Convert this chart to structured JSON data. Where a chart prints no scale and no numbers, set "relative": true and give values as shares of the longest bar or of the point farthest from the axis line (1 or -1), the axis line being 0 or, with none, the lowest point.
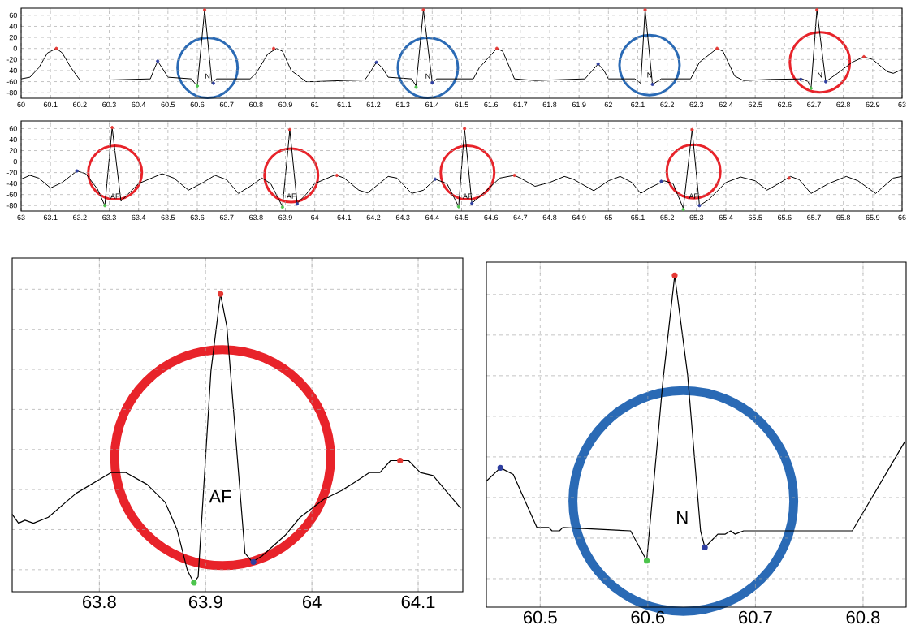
{
  "chart_data": [
    {
      "type": "line",
      "xlim": [
        60,
        63
      ],
      "ylim": [
        -90,
        73
      ],
      "xticks": [
        60,
        60.1,
        60.2,
        60.3,
        60.4,
        60.5,
        60.6,
        60.7,
        60.8,
        60.9,
        61,
        61.1,
        61.2,
        61.3,
        61.4,
        61.5,
        61.6,
        61.7,
        61.8,
        61.9,
        62,
        62.1,
        62.2,
        62.3,
        62.4,
        62.5,
        62.6,
        62.7,
        62.8,
        62.9,
        63
      ],
      "yticks": [
        -80,
        -60,
        -40,
        -20,
        0,
        20,
        40,
        60
      ],
      "grid": true,
      "series": [
        {
          "marker": "none",
          "color": "#000000",
          "x": [
            60.0,
            60.03,
            60.06,
            60.09,
            60.12,
            60.14,
            60.17,
            60.2,
            60.3,
            60.44,
            60.455,
            60.465,
            60.48,
            60.5,
            60.58,
            60.595,
            60.6,
            60.625,
            60.65,
            60.665,
            60.78,
            60.8,
            60.84,
            60.87,
            60.89,
            60.92,
            60.97,
            61.0,
            61.1,
            61.17,
            61.18,
            61.21,
            61.23,
            61.25,
            61.33,
            61.345,
            61.37,
            61.4,
            61.415,
            61.54,
            61.56,
            61.62,
            61.64,
            61.68,
            61.75,
            61.92,
            61.945,
            61.965,
            61.985,
            62.0,
            62.09,
            62.11,
            62.125,
            62.15,
            62.18,
            62.28,
            62.31,
            62.37,
            62.39,
            62.43,
            62.46,
            62.55,
            62.66,
            62.68,
            62.69,
            62.71,
            62.74,
            62.78,
            62.83,
            62.87,
            62.9,
            62.95,
            62.97,
            63.0
          ],
          "values": [
            -55,
            -52,
            -35,
            -8,
            0,
            -8,
            -35,
            -57,
            -57,
            -55,
            -35,
            -23,
            -35,
            -52,
            -55,
            -65,
            -68,
            70,
            -63,
            -55,
            -55,
            -45,
            -10,
            0,
            -5,
            -40,
            -60,
            -60,
            -58,
            -57,
            -50,
            -25,
            -35,
            -52,
            -55,
            -68,
            70,
            -62,
            -55,
            -55,
            -35,
            0,
            -5,
            -55,
            -58,
            -55,
            -40,
            -28,
            -40,
            -55,
            -55,
            -63,
            70,
            -65,
            -55,
            -55,
            -25,
            0,
            -5,
            -50,
            -58,
            -56,
            -55,
            -60,
            -72,
            70,
            -60,
            -45,
            -25,
            -15,
            -20,
            -42,
            -45,
            -38
          ]
        },
        {
          "type": "scatter",
          "marker": "circle",
          "color": "#e53935",
          "x": [
            60.12,
            60.625,
            60.86,
            61.37,
            61.62,
            62.125,
            62.37,
            62.71,
            62.87
          ],
          "values": [
            0,
            70,
            0,
            70,
            0,
            70,
            0,
            70,
            -15
          ]
        },
        {
          "type": "scatter",
          "marker": "circle",
          "color": "#2f3fa0",
          "x": [
            60.465,
            60.655,
            61.21,
            61.4,
            61.965,
            62.15,
            62.655,
            62.74
          ],
          "values": [
            -23,
            -63,
            -25,
            -62,
            -28,
            -65,
            -56,
            -60
          ]
        },
        {
          "type": "scatter",
          "marker": "circle",
          "color": "#4cc44c",
          "x": [
            60.6,
            61.345,
            62.69
          ],
          "values": [
            -68,
            -70,
            -72
          ]
        }
      ],
      "annotations": [
        "N",
        "N",
        "N",
        "N"
      ]
    },
    {
      "type": "line",
      "xlim": [
        63,
        66
      ],
      "ylim": [
        -90,
        74
      ],
      "xticks": [
        63,
        63.1,
        63.2,
        63.3,
        63.4,
        63.5,
        63.6,
        63.7,
        63.8,
        63.9,
        64,
        64.1,
        64.2,
        64.3,
        64.4,
        64.5,
        64.6,
        64.7,
        64.8,
        64.9,
        65,
        65.1,
        65.2,
        65.3,
        65.4,
        65.5,
        65.6,
        65.7,
        65.8,
        65.9,
        66
      ],
      "yticks": [
        -80,
        -60,
        -40,
        -20,
        0,
        20,
        40,
        60
      ],
      "grid": true,
      "series": [
        {
          "marker": "none",
          "color": "#000000",
          "x": [
            63.0,
            63.03,
            63.06,
            63.1,
            63.14,
            63.19,
            63.22,
            63.26,
            63.285,
            63.31,
            63.34,
            63.4,
            63.48,
            63.52,
            63.57,
            63.62,
            63.66,
            63.7,
            63.74,
            63.78,
            63.82,
            63.85,
            63.89,
            63.915,
            63.94,
            63.97,
            64.0,
            64.07,
            64.1,
            64.15,
            64.18,
            64.25,
            64.28,
            64.33,
            64.37,
            64.41,
            64.45,
            64.49,
            64.51,
            64.535,
            64.58,
            64.63,
            64.68,
            64.7,
            64.75,
            64.8,
            64.85,
            64.88,
            64.95,
            65.0,
            65.04,
            65.08,
            65.11,
            65.14,
            65.19,
            65.22,
            65.255,
            65.285,
            65.31,
            65.34,
            65.4,
            65.45,
            65.5,
            65.54,
            65.58,
            65.62,
            65.65,
            65.69,
            65.75,
            65.81,
            65.85,
            65.91,
            65.97,
            66.0
          ],
          "values": [
            -32,
            -25,
            -30,
            -48,
            -38,
            -17,
            -22,
            -50,
            -80,
            62,
            -72,
            -40,
            -22,
            -30,
            -52,
            -38,
            -25,
            -33,
            -58,
            -45,
            -30,
            -40,
            -82,
            58,
            -76,
            -60,
            -40,
            -24,
            -30,
            -52,
            -57,
            -27,
            -30,
            -58,
            -52,
            -32,
            -40,
            -82,
            60,
            -76,
            -55,
            -30,
            -25,
            -30,
            -45,
            -38,
            -27,
            -32,
            -53,
            -35,
            -27,
            -38,
            -58,
            -48,
            -35,
            -40,
            -85,
            58,
            -80,
            -70,
            -38,
            -28,
            -35,
            -52,
            -40,
            -27,
            -33,
            -58,
            -40,
            -27,
            -35,
            -58,
            -30,
            -27
          ]
        },
        {
          "type": "scatter",
          "marker": "circle",
          "color": "#e53935",
          "x": [
            63.31,
            63.915,
            64.075,
            64.51,
            64.68,
            65.285,
            65.615
          ],
          "values": [
            62,
            58,
            -25,
            60,
            -25,
            58,
            -30
          ]
        },
        {
          "type": "scatter",
          "marker": "circle",
          "color": "#2f3fa0",
          "x": [
            63.19,
            63.94,
            64.41,
            64.535,
            65.18,
            65.31
          ],
          "values": [
            -17,
            -77,
            -32,
            -76,
            -36,
            -80
          ]
        },
        {
          "type": "scatter",
          "marker": "circle",
          "color": "#4cc44c",
          "x": [
            63.285,
            63.89,
            64.49,
            65.255
          ],
          "values": [
            -80,
            -83,
            -82,
            -87
          ]
        }
      ],
      "annotations": [
        "AF",
        "AF",
        "AF",
        "AF"
      ]
    },
    {
      "type": "line",
      "relative": true,
      "xlim": [
        63.718,
        64.142
      ],
      "xticks": [
        63.8,
        63.9,
        64,
        64.1
      ],
      "grid": true,
      "tick_labels": "x",
      "series": [
        {
          "marker": "none",
          "color": "#000000",
          "x": [
            63.718,
            63.724,
            63.73,
            63.738,
            63.752,
            63.778,
            63.811,
            63.825,
            63.845,
            63.862,
            63.873,
            63.883,
            63.889,
            63.893,
            63.905,
            63.914,
            63.92,
            63.937,
            63.944,
            63.953,
            63.975,
            63.989,
            64.011,
            64.028,
            64.037,
            64.054,
            64.064,
            64.074,
            64.091,
            64.102,
            64.114,
            64.14
          ],
          "values": [
            0.26,
            0.23,
            0.24,
            0.23,
            0.25,
            0.33,
            0.4,
            0.4,
            0.36,
            0.3,
            0.21,
            0.07,
            0.03,
            0.05,
            0.74,
            1,
            0.89,
            0.13,
            0.1,
            0.12,
            0.19,
            0.25,
            0.31,
            0.34,
            0.36,
            0.4,
            0.4,
            0.44,
            0.44,
            0.4,
            0.39,
            0.28
          ]
        },
        {
          "type": "scatter",
          "marker": "circle",
          "color": "#e53935",
          "x": [
            63.914,
            64.083
          ],
          "values": [
            1,
            0.44
          ]
        },
        {
          "type": "scatter",
          "marker": "circle",
          "color": "#2f3fa0",
          "x": [
            63.945
          ],
          "values": [
            0.1
          ]
        },
        {
          "type": "scatter",
          "marker": "circle",
          "color": "#4cc44c",
          "x": [
            63.889
          ],
          "values": [
            0.03
          ]
        }
      ],
      "annotations": [
        "AF"
      ]
    },
    {
      "type": "line",
      "relative": true,
      "xlim": [
        60.45,
        60.84
      ],
      "xticks": [
        60.5,
        60.6,
        60.7,
        60.8
      ],
      "grid": true,
      "tick_labels": "x",
      "series": [
        {
          "marker": "none",
          "color": "#000000",
          "x": [
            60.45,
            60.463,
            60.475,
            60.497,
            60.508,
            60.511,
            60.518,
            60.521,
            60.584,
            60.599,
            60.614,
            60.625,
            60.637,
            60.649,
            60.653,
            60.659,
            60.665,
            60.672,
            60.677,
            60.681,
            60.689,
            60.697,
            60.742,
            60.745,
            60.79,
            60.839
          ],
          "values": [
            0.38,
            0.42,
            0.4,
            0.24,
            0.24,
            0.23,
            0.23,
            0.24,
            0.23,
            0.14,
            0.68,
            1,
            0.7,
            0.23,
            0.18,
            0.2,
            0.22,
            0.22,
            0.23,
            0.22,
            0.23,
            0.23,
            0.23,
            0.23,
            0.23,
            0.5
          ]
        },
        {
          "type": "scatter",
          "marker": "circle",
          "color": "#e53935",
          "x": [
            60.625
          ],
          "values": [
            1
          ]
        },
        {
          "type": "scatter",
          "marker": "circle",
          "color": "#2f3fa0",
          "x": [
            60.463,
            60.653
          ],
          "values": [
            0.42,
            0.18
          ]
        },
        {
          "type": "scatter",
          "marker": "circle",
          "color": "#4cc44c",
          "x": [
            60.599
          ],
          "values": [
            0.14
          ]
        }
      ],
      "annotations": [
        "N"
      ]
    }
  ]
}
